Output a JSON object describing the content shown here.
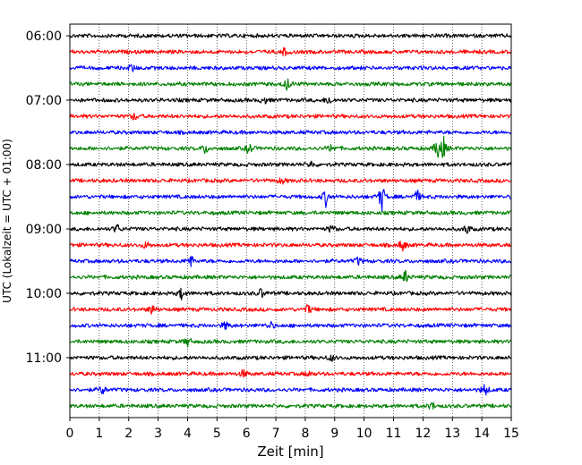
{
  "chart_data": {
    "type": "line",
    "title": "",
    "xlabel": "Zeit  [min]",
    "ylabel": "UTC (Lokalzeit = UTC + 01:00)",
    "xlim": [
      0,
      15
    ],
    "x_ticks": [
      0,
      1,
      2,
      3,
      4,
      5,
      6,
      7,
      8,
      9,
      10,
      11,
      12,
      13,
      14,
      15
    ],
    "x_tick_labels": [
      "0",
      "1",
      "2",
      "3",
      "4",
      "5",
      "6",
      "7",
      "8",
      "9",
      "10",
      "11",
      "12",
      "13",
      "14",
      "15"
    ],
    "y_tick_labels": [
      "06:00",
      "07:00",
      "08:00",
      "09:00",
      "10:00",
      "11:00"
    ],
    "grid": "vertical-dotted",
    "line_colors": [
      "#000000",
      "#ff0000",
      "#0000ff",
      "#008000"
    ],
    "trace_minutes_per_line": 15,
    "trace_start_times": [
      "06:00",
      "06:15",
      "06:30",
      "06:45",
      "07:00",
      "07:15",
      "07:30",
      "07:45",
      "08:00",
      "08:15",
      "08:30",
      "08:45",
      "09:00",
      "09:15",
      "09:30",
      "09:45",
      "10:00",
      "10:15",
      "10:30",
      "10:45",
      "11:00",
      "11:15",
      "11:30",
      "11:45"
    ]
  }
}
